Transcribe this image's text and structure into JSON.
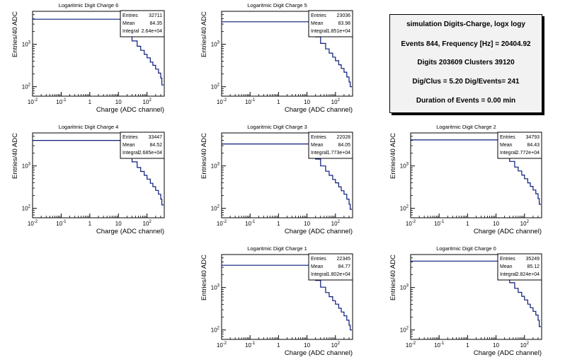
{
  "summary": {
    "title": "simulation Digits-Charge, logx logy",
    "lines": [
      "Events 844, Frequency [Hz] = 20404.92",
      "Digits 203609 Clusters 39120",
      "Dig/Clus = 5.20 Dig/Events= 241",
      "Duration of Events = 0.00 min"
    ]
  },
  "stats_labels": {
    "entries": "Entries",
    "mean": "Mean",
    "integral": "Integral"
  },
  "chart_data": [
    {
      "type": "histogram",
      "title": "Logaritmic Digit Charge 6",
      "xlabel": "Charge (ADC channel)",
      "ylabel": "Entries/40 ADC",
      "xscale": "log",
      "yscale": "log",
      "xlim": [
        0.01,
        400
      ],
      "ylim": [
        60,
        6000
      ],
      "xticks": [
        "10^{-2}",
        "10^{-1}",
        "1",
        "10",
        "10^{2}"
      ],
      "yticks": [
        "10^{2}",
        "10^{3}"
      ],
      "stats": {
        "entries": "32711",
        "mean": "84.35",
        "integral": "2.64e+04"
      },
      "flat_level": 3900,
      "x": [
        8,
        12,
        16,
        20,
        30,
        45,
        60,
        80,
        100,
        130,
        160,
        200,
        250,
        300,
        330
      ],
      "y": [
        3900,
        3000,
        2100,
        1700,
        1200,
        900,
        720,
        580,
        480,
        380,
        320,
        260,
        210,
        160,
        110
      ]
    },
    {
      "type": "histogram",
      "title": "Logaritmic Digit Charge 5",
      "xlabel": "Charge (ADC channel)",
      "ylabel": "Entries/40 ADC",
      "xscale": "log",
      "yscale": "log",
      "xlim": [
        0.01,
        400
      ],
      "ylim": [
        60,
        6000
      ],
      "xticks": [
        "10^{-2}",
        "10^{-1}",
        "1",
        "10",
        "10^{2}"
      ],
      "yticks": [
        "10^{2}",
        "10^{3}"
      ],
      "stats": {
        "entries": "23036",
        "mean": "83.98",
        "integral": "1.851e+04"
      },
      "flat_level": 3400,
      "x": [
        8,
        12,
        16,
        20,
        30,
        45,
        60,
        80,
        100,
        130,
        160,
        200,
        250,
        300,
        330
      ],
      "y": [
        3400,
        2600,
        1850,
        1500,
        1050,
        780,
        620,
        500,
        410,
        330,
        270,
        220,
        170,
        130,
        100
      ]
    },
    {
      "type": "histogram",
      "title": "Logaritmic Digit Charge 4",
      "xlabel": "Charge (ADC channel)",
      "ylabel": "Entries/40 ADC",
      "xscale": "log",
      "yscale": "log",
      "xlim": [
        0.01,
        400
      ],
      "ylim": [
        60,
        6000
      ],
      "xticks": [
        "10^{-2}",
        "10^{-1}",
        "1",
        "10",
        "10^{2}"
      ],
      "yticks": [
        "10^{2}",
        "10^{3}"
      ],
      "stats": {
        "entries": "33447",
        "mean": "84.52",
        "integral": "2.685e+04"
      },
      "flat_level": 4000,
      "x": [
        8,
        12,
        16,
        20,
        30,
        45,
        60,
        80,
        100,
        130,
        160,
        200,
        250,
        300,
        330
      ],
      "y": [
        4000,
        3100,
        2200,
        1750,
        1250,
        920,
        740,
        600,
        490,
        390,
        325,
        265,
        215,
        165,
        120
      ]
    },
    {
      "type": "histogram",
      "title": "Logaritmic Digit Charge 3",
      "xlabel": "Charge (ADC channel)",
      "ylabel": "Entries/40 ADC",
      "xscale": "log",
      "yscale": "log",
      "xlim": [
        0.01,
        400
      ],
      "ylim": [
        60,
        6000
      ],
      "xticks": [
        "10^{-2}",
        "10^{-1}",
        "1",
        "10",
        "10^{2}"
      ],
      "yticks": [
        "10^{2}",
        "10^{3}"
      ],
      "stats": {
        "entries": "22028",
        "mean": "84.05",
        "integral": "1.773e+04"
      },
      "flat_level": 3300,
      "x": [
        8,
        12,
        16,
        20,
        30,
        45,
        60,
        80,
        100,
        130,
        160,
        200,
        250,
        300,
        330
      ],
      "y": [
        3300,
        2500,
        1800,
        1450,
        1000,
        750,
        600,
        480,
        400,
        320,
        260,
        215,
        165,
        125,
        95
      ]
    },
    {
      "type": "histogram",
      "title": "Logaritmic Digit Charge 2",
      "xlabel": "Charge (ADC channel)",
      "ylabel": "Entries/40 ADC",
      "xscale": "log",
      "yscale": "log",
      "xlim": [
        0.01,
        400
      ],
      "ylim": [
        60,
        6000
      ],
      "xticks": [
        "10^{-2}",
        "10^{-1}",
        "1",
        "10",
        "10^{2}"
      ],
      "yticks": [
        "10^{2}",
        "10^{3}"
      ],
      "stats": {
        "entries": "34793",
        "mean": "84.43",
        "integral": "2.772e+04"
      },
      "flat_level": 4100,
      "x": [
        8,
        12,
        16,
        20,
        30,
        45,
        60,
        80,
        100,
        130,
        160,
        200,
        250,
        300,
        330
      ],
      "y": [
        4100,
        3150,
        2250,
        1800,
        1280,
        940,
        760,
        610,
        500,
        400,
        330,
        270,
        220,
        170,
        125
      ]
    },
    {
      "type": "histogram",
      "title": "Logaritmic Digit Charge 1",
      "xlabel": "Charge (ADC channel)",
      "ylabel": "Entries/40 ADC",
      "xscale": "log",
      "yscale": "log",
      "xlim": [
        0.01,
        400
      ],
      "ylim": [
        60,
        6000
      ],
      "xticks": [
        "10^{-2}",
        "10^{-1}",
        "1",
        "10",
        "10^{2}"
      ],
      "yticks": [
        "10^{2}",
        "10^{3}"
      ],
      "stats": {
        "entries": "22345",
        "mean": "84.77",
        "integral": "1.802e+04"
      },
      "flat_level": 3350,
      "x": [
        8,
        12,
        16,
        20,
        30,
        45,
        60,
        80,
        100,
        130,
        160,
        200,
        250,
        300,
        330
      ],
      "y": [
        3350,
        2550,
        1820,
        1470,
        1020,
        760,
        610,
        490,
        405,
        325,
        265,
        215,
        170,
        130,
        100
      ]
    },
    {
      "type": "histogram",
      "title": "Logaritmic Digit Charge 0",
      "xlabel": "Charge (ADC channel)",
      "ylabel": "Entries/40 ADC",
      "xscale": "log",
      "yscale": "log",
      "xlim": [
        0.01,
        400
      ],
      "ylim": [
        60,
        6000
      ],
      "xticks": [
        "10^{-2}",
        "10^{-1}",
        "1",
        "10",
        "10^{2}"
      ],
      "yticks": [
        "10^{2}",
        "10^{3}"
      ],
      "stats": {
        "entries": "35249",
        "mean": "85.12",
        "integral": "2.824e+04"
      },
      "flat_level": 4200,
      "x": [
        8,
        12,
        16,
        20,
        30,
        45,
        60,
        80,
        100,
        130,
        160,
        200,
        250,
        300,
        330
      ],
      "y": [
        4200,
        3200,
        2300,
        1850,
        1300,
        960,
        770,
        620,
        510,
        405,
        335,
        275,
        225,
        170,
        120
      ]
    }
  ]
}
